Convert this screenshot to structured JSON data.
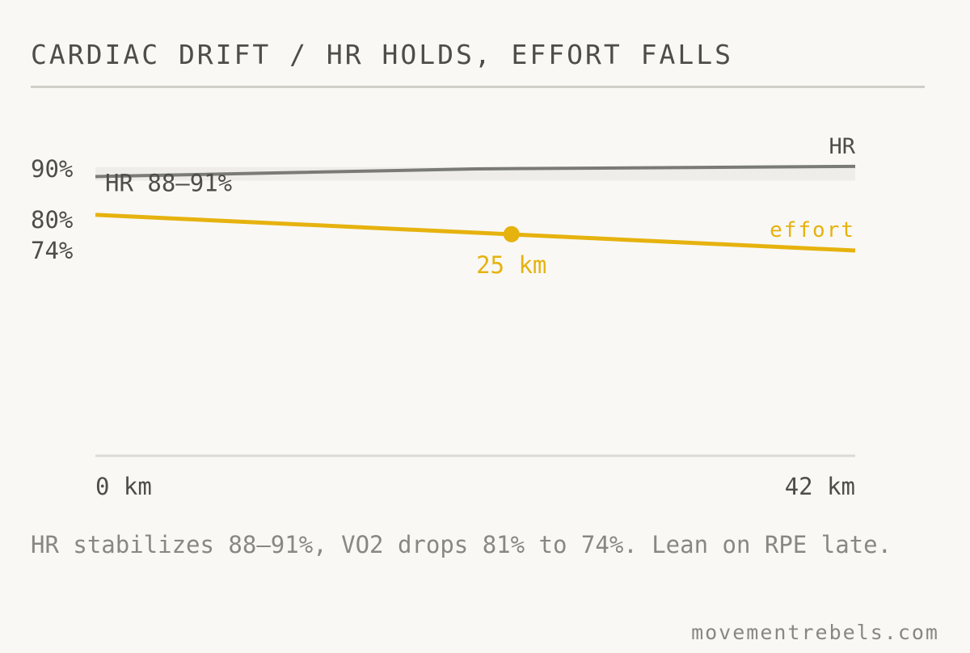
{
  "title": "CARDIAC DRIFT / HR HOLDS, EFFORT FALLS",
  "caption": "HR stabilizes 88–91%, VO2 drops 81% to 74%. Lean on RPE late.",
  "credit": "movementrebels.com",
  "colors": {
    "background": "#f9f8f4",
    "hr": "#7a7a77",
    "effort": "#e6b20e",
    "band": "#eeede9",
    "text": "#4d4d4a",
    "muted": "#8a8782",
    "rule": "#dcdbd6"
  },
  "chart_data": {
    "type": "line",
    "xlabel": "",
    "ylabel": "",
    "xlim": [
      0,
      42
    ],
    "ylim": [
      74,
      90
    ],
    "x_tick_labels": [
      {
        "x": 0,
        "label": "0 km"
      },
      {
        "x": 42,
        "label": "42 km"
      }
    ],
    "y_tick_labels": [
      {
        "y": 90,
        "label": "90%"
      },
      {
        "y": 80,
        "label": "80%"
      },
      {
        "y": 74,
        "label": "74%"
      }
    ],
    "band": {
      "from": 88,
      "to": 91,
      "label": "HR 88–91%"
    },
    "series": [
      {
        "name": "HR",
        "color": "#7a7a77",
        "points": [
          {
            "x": 0,
            "y": 88.5
          },
          {
            "x": 21,
            "y": 90.0
          },
          {
            "x": 42,
            "y": 90.5
          }
        ]
      },
      {
        "name": "effort",
        "color": "#e6b20e",
        "points": [
          {
            "x": 0,
            "y": 81
          },
          {
            "x": 42,
            "y": 74
          }
        ]
      }
    ],
    "annotations": [
      {
        "series": "effort",
        "x": 23,
        "y": 77.2,
        "label": "25 km"
      }
    ],
    "grid": false,
    "legend": "none (series labelled at line ends)"
  }
}
